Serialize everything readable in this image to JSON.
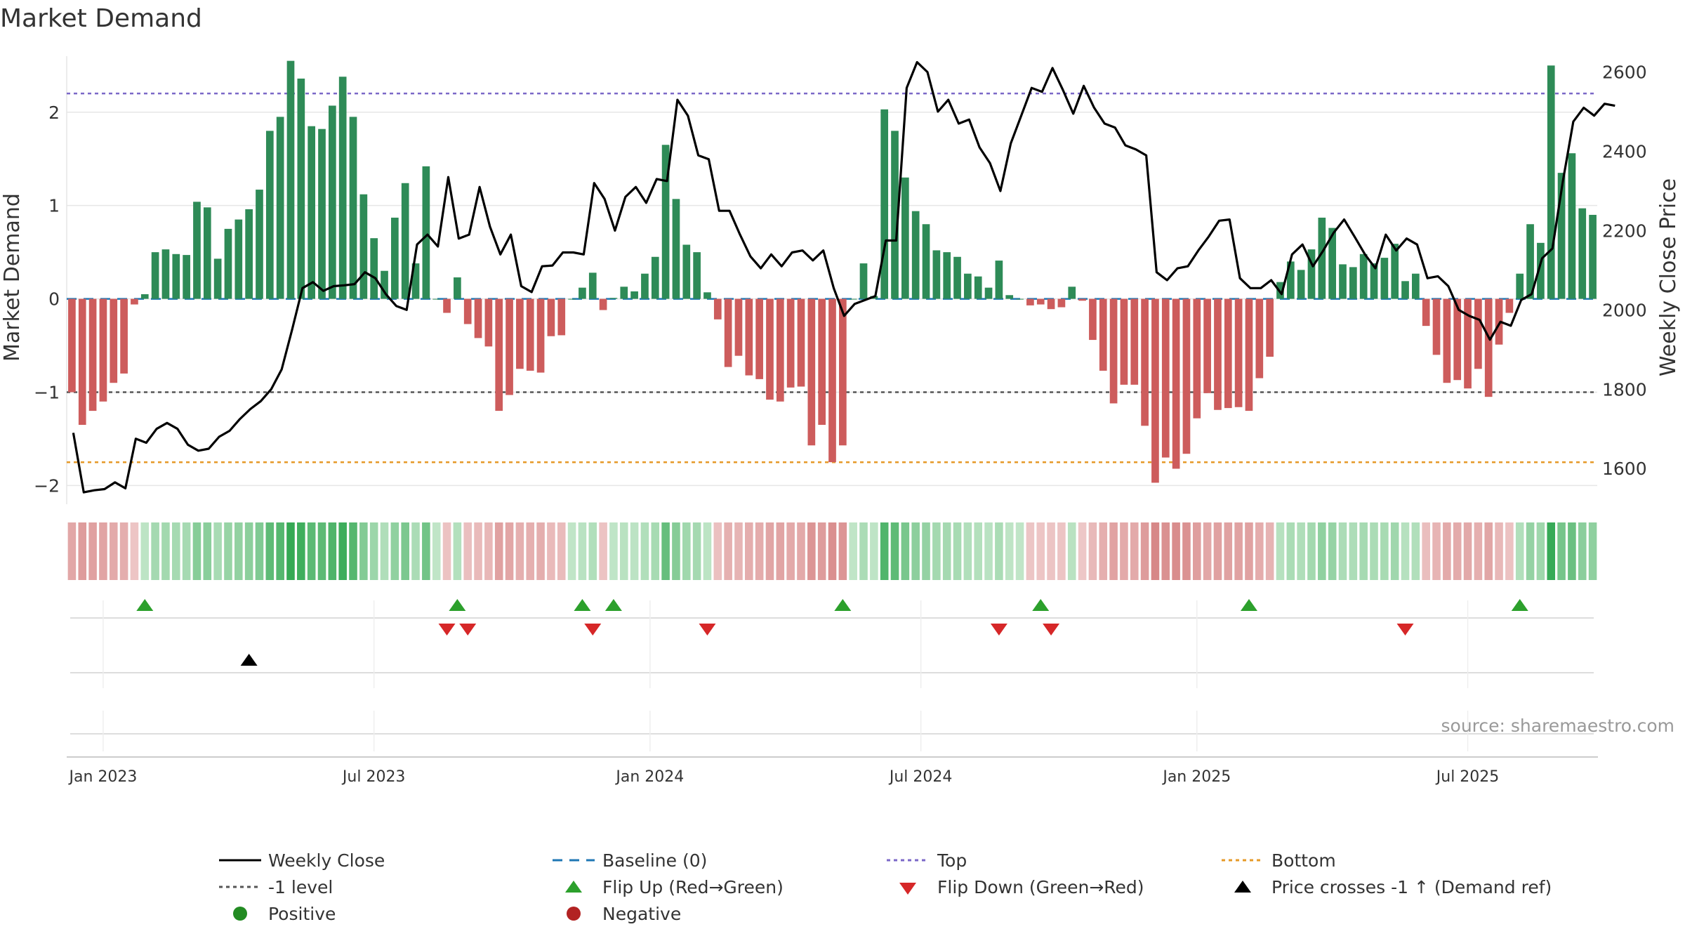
{
  "chart_data": {
    "type": "bar",
    "title": "Market Demand",
    "ylabel_left": "Market Demand",
    "ylabel_right": "Weekly Close Price",
    "ylim_left": [
      -2.2,
      2.6
    ],
    "ylim_right": [
      1510,
      2640
    ],
    "left_ticks": [
      {
        "value": 2,
        "label": "2"
      },
      {
        "value": 1,
        "label": "1"
      },
      {
        "value": 0,
        "label": "0"
      },
      {
        "value": -1,
        "label": "−1"
      },
      {
        "value": -2,
        "label": "−2"
      }
    ],
    "right_ticks": [
      {
        "value": 2600,
        "label": "2600"
      },
      {
        "value": 2400,
        "label": "2400"
      },
      {
        "value": 2200,
        "label": "2200"
      },
      {
        "value": 2000,
        "label": "2000"
      },
      {
        "value": 1800,
        "label": "1800"
      },
      {
        "value": 1600,
        "label": "1600"
      }
    ],
    "x_ticks": [
      {
        "week": 3,
        "label": "Jan 2023"
      },
      {
        "week": 29,
        "label": "Jul 2023"
      },
      {
        "week": 55.5,
        "label": "Jan 2024"
      },
      {
        "week": 81.5,
        "label": "Jul 2024"
      },
      {
        "week": 108,
        "label": "Jan 2025"
      },
      {
        "week": 134,
        "label": "Jul 2025"
      }
    ],
    "reference_lines": {
      "top": 2.2,
      "bottom": -1.75,
      "minus_one": -1,
      "baseline": 0
    },
    "demand": [
      -1.0,
      -1.35,
      -1.2,
      -1.1,
      -0.9,
      -0.8,
      -0.06,
      0.05,
      0.5,
      0.53,
      0.48,
      0.47,
      1.04,
      0.98,
      0.43,
      0.75,
      0.85,
      0.96,
      1.17,
      1.8,
      1.95,
      2.55,
      2.36,
      1.85,
      1.82,
      2.07,
      2.38,
      1.95,
      1.12,
      0.65,
      0.3,
      0.87,
      1.24,
      0.38,
      1.42,
      0.0,
      -0.15,
      0.23,
      -0.27,
      -0.42,
      -0.51,
      -1.2,
      -1.03,
      -0.75,
      -0.77,
      -0.79,
      -0.4,
      -0.39,
      0.0,
      0.12,
      0.28,
      -0.12,
      0.01,
      0.13,
      0.08,
      0.27,
      0.45,
      1.65,
      1.07,
      0.58,
      0.5,
      0.07,
      -0.22,
      -0.73,
      -0.61,
      -0.82,
      -0.86,
      -1.08,
      -1.1,
      -0.95,
      -0.94,
      -1.57,
      -1.35,
      -1.75,
      -1.57,
      0.0,
      0.38,
      0.03,
      2.03,
      1.8,
      1.3,
      0.94,
      0.8,
      0.52,
      0.5,
      0.45,
      0.27,
      0.24,
      0.12,
      0.41,
      0.04,
      0.0,
      -0.07,
      -0.06,
      -0.11,
      -0.09,
      0.13,
      -0.02,
      -0.44,
      -0.77,
      -1.12,
      -0.92,
      -0.92,
      -1.36,
      -1.97,
      -1.7,
      -1.82,
      -1.66,
      -1.28,
      -1.01,
      -1.19,
      -1.17,
      -1.16,
      -1.2,
      -0.85,
      -0.62,
      0.18,
      0.4,
      0.31,
      0.53,
      0.87,
      0.76,
      0.37,
      0.34,
      0.48,
      0.38,
      0.44,
      0.59,
      0.19,
      0.27,
      -0.29,
      -0.6,
      -0.9,
      -0.87,
      -0.96,
      -0.75,
      -1.05,
      -0.49,
      -0.15,
      0.27,
      0.8,
      0.6,
      2.5,
      1.35,
      1.56,
      0.97,
      0.9
    ],
    "weekly_close": [
      1690,
      1540,
      1545,
      1548,
      1565,
      1550,
      1675,
      1665,
      1700,
      1715,
      1700,
      1660,
      1645,
      1650,
      1680,
      1695,
      1725,
      1750,
      1770,
      1800,
      1850,
      1950,
      2055,
      2070,
      2048,
      2060,
      2062,
      2065,
      2095,
      2080,
      2040,
      2010,
      2000,
      2165,
      2190,
      2160,
      2335,
      2180,
      2190,
      2310,
      2210,
      2140,
      2190,
      2060,
      2045,
      2110,
      2112,
      2145,
      2145,
      2140,
      2320,
      2280,
      2200,
      2285,
      2310,
      2270,
      2330,
      2325,
      2530,
      2490,
      2390,
      2380,
      2250,
      2250,
      2190,
      2135,
      2105,
      2140,
      2110,
      2145,
      2150,
      2125,
      2150,
      2055,
      1985,
      2015,
      2025,
      2035,
      2175,
      2175,
      2560,
      2625,
      2600,
      2500,
      2530,
      2470,
      2480,
      2410,
      2370,
      2300,
      2420,
      2490,
      2560,
      2550,
      2610,
      2555,
      2495,
      2565,
      2510,
      2470,
      2460,
      2415,
      2405,
      2390,
      2095,
      2075,
      2105,
      2110,
      2150,
      2185,
      2225,
      2228,
      2080,
      2055,
      2055,
      2075,
      2040,
      2140,
      2165,
      2110,
      2150,
      2195,
      2228,
      2185,
      2140,
      2105,
      2190,
      2150,
      2180,
      2165,
      2080,
      2085,
      2060,
      2000,
      1985,
      1975,
      1925,
      1970,
      1960,
      2025,
      2040,
      2130,
      2155,
      2325,
      2475,
      2510,
      2490,
      2520,
      2515
    ],
    "flip_up_weeks": [
      7,
      37,
      49,
      52,
      74,
      93,
      113,
      139
    ],
    "flip_down_weeks": [
      36,
      38,
      50,
      61,
      89,
      94,
      128
    ],
    "price_cross_weeks": [
      17
    ],
    "legend": {
      "weekly_close": "Weekly Close",
      "baseline": "Baseline (0)",
      "top": "Top",
      "bottom": "Bottom",
      "minus_one": "-1 level",
      "flip_up": "Flip Up (Red→Green)",
      "flip_down": "Flip Down (Green→Red)",
      "price_cross": "Price crosses -1 ↑ (Demand ref)",
      "positive": "Positive",
      "negative": "Negative"
    },
    "source": "source: sharemaestro.com"
  },
  "colors": {
    "positive": "#2e8b57",
    "negative": "#cd5c5c",
    "price": "#000000",
    "baseline": "#1f77b4",
    "top": "#7b68c8",
    "bottom": "#e69a28",
    "minus_one": "#555555",
    "flip_up": "#2ca02c",
    "flip_down": "#d62728",
    "grid": "#e6e6e6",
    "legend_positive": "#228b22",
    "legend_negative": "#b22222"
  }
}
